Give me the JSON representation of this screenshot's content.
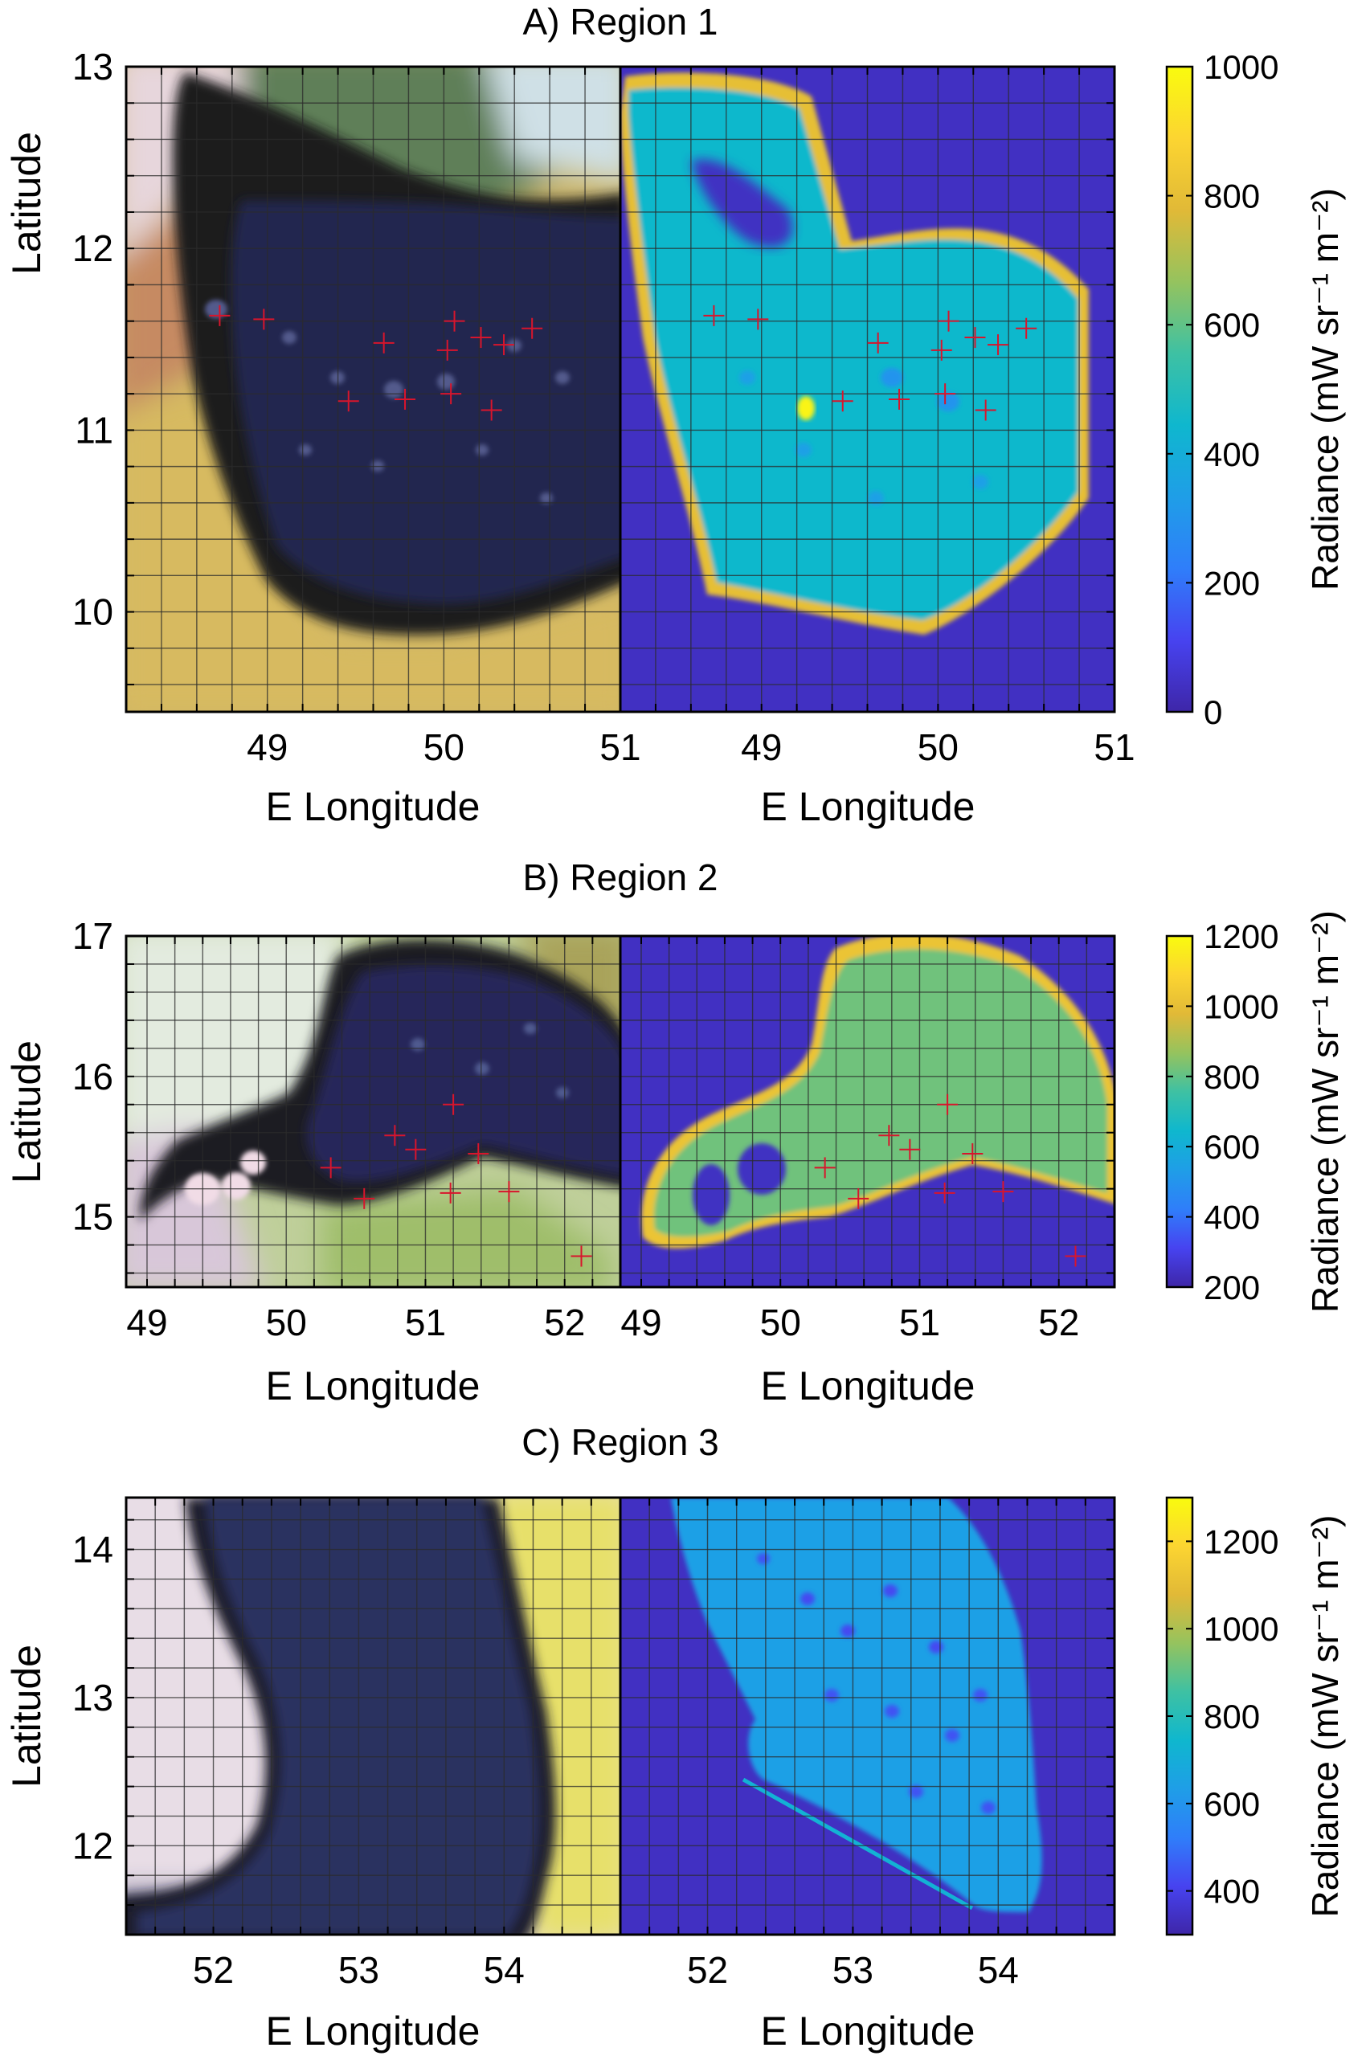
{
  "figure": {
    "colors": {
      "parula_stops": [
        "#3e26a8",
        "#4743f0",
        "#2f7efa",
        "#1f9ee7",
        "#0fb7ce",
        "#3ec1a3",
        "#95c35e",
        "#e1b937",
        "#fcd531",
        "#f9fb0e"
      ],
      "marker": "#d8152c",
      "grid": "#2b2b2b"
    }
  },
  "chart_data": [
    {
      "type": "heatmap",
      "title": "A) Region 1",
      "xlabel": "E Longitude",
      "ylabel": "Latitude",
      "xlim": [
        48.2,
        51.0
      ],
      "ylim": [
        9.45,
        13.0
      ],
      "xticks": [
        "49",
        "50",
        "51"
      ],
      "xtick_values": [
        49,
        50,
        51
      ],
      "yticks": [
        "13",
        "12",
        "11",
        "10"
      ],
      "ytick_values": [
        13,
        12,
        11,
        10
      ],
      "colorbar": {
        "label": "Radiance (mW sr⁻¹ m⁻²)",
        "min": 0,
        "max": 1000,
        "ticks": [
          "1000",
          "800",
          "600",
          "400",
          "200",
          "0"
        ],
        "tick_values": [
          1000,
          800,
          600,
          400,
          200,
          0
        ]
      },
      "markers": [
        {
          "lon": 48.73,
          "lat": 11.63
        },
        {
          "lon": 48.98,
          "lat": 11.61
        },
        {
          "lon": 49.66,
          "lat": 11.48
        },
        {
          "lon": 50.02,
          "lat": 11.44
        },
        {
          "lon": 50.06,
          "lat": 11.6
        },
        {
          "lon": 50.21,
          "lat": 11.51
        },
        {
          "lon": 50.34,
          "lat": 11.47
        },
        {
          "lon": 50.5,
          "lat": 11.56
        },
        {
          "lon": 49.46,
          "lat": 11.16
        },
        {
          "lon": 49.78,
          "lat": 11.17
        },
        {
          "lon": 50.04,
          "lat": 11.2
        },
        {
          "lon": 50.27,
          "lat": 11.11
        }
      ],
      "radiance_levels": {
        "ocean": 40,
        "land": 450,
        "coast_edge": 800,
        "hotspot": 980
      }
    },
    {
      "type": "heatmap",
      "title": "B) Region 2",
      "xlabel": "E Longitude",
      "ylabel": "Latitude",
      "xlim": [
        48.85,
        52.4
      ],
      "ylim": [
        14.5,
        17.0
      ],
      "xticks": [
        "49",
        "50",
        "51",
        "52"
      ],
      "xtick_values": [
        49,
        50,
        51,
        52
      ],
      "yticks": [
        "17",
        "16",
        "15"
      ],
      "ytick_values": [
        17,
        16,
        15
      ],
      "colorbar": {
        "label": "Radiance (mW sr⁻¹ m⁻²)",
        "min": 200,
        "max": 1200,
        "ticks": [
          "1200",
          "1000",
          "800",
          "600",
          "400",
          "200"
        ],
        "tick_values": [
          1200,
          1000,
          800,
          600,
          400,
          200
        ]
      },
      "markers": [
        {
          "lon": 50.32,
          "lat": 15.35
        },
        {
          "lon": 50.56,
          "lat": 15.13
        },
        {
          "lon": 50.78,
          "lat": 15.58
        },
        {
          "lon": 50.93,
          "lat": 15.48
        },
        {
          "lon": 51.2,
          "lat": 15.8
        },
        {
          "lon": 51.38,
          "lat": 15.45
        },
        {
          "lon": 51.18,
          "lat": 15.17
        },
        {
          "lon": 51.6,
          "lat": 15.18
        },
        {
          "lon": 52.12,
          "lat": 14.72
        }
      ],
      "radiance_levels": {
        "ocean": 240,
        "land": 820,
        "coast_edge": 1020
      }
    },
    {
      "type": "heatmap",
      "title": "C) Region 3",
      "xlabel": "E Longitude",
      "ylabel": "Latitude",
      "xlim": [
        51.4,
        54.8
      ],
      "ylim": [
        11.4,
        14.35
      ],
      "xticks": [
        "52",
        "53",
        "54"
      ],
      "xtick_values": [
        52,
        53,
        54
      ],
      "yticks": [
        "14",
        "13",
        "12"
      ],
      "ytick_values": [
        14,
        13,
        12
      ],
      "colorbar": {
        "label": "Radiance (mW sr⁻¹ m⁻²)",
        "min": 300,
        "max": 1300,
        "ticks": [
          "1200",
          "1000",
          "800",
          "600",
          "400"
        ],
        "tick_values": [
          1200,
          1000,
          800,
          600,
          400
        ]
      },
      "markers": [],
      "radiance_levels": {
        "ocean": 340,
        "land": 640
      }
    }
  ]
}
